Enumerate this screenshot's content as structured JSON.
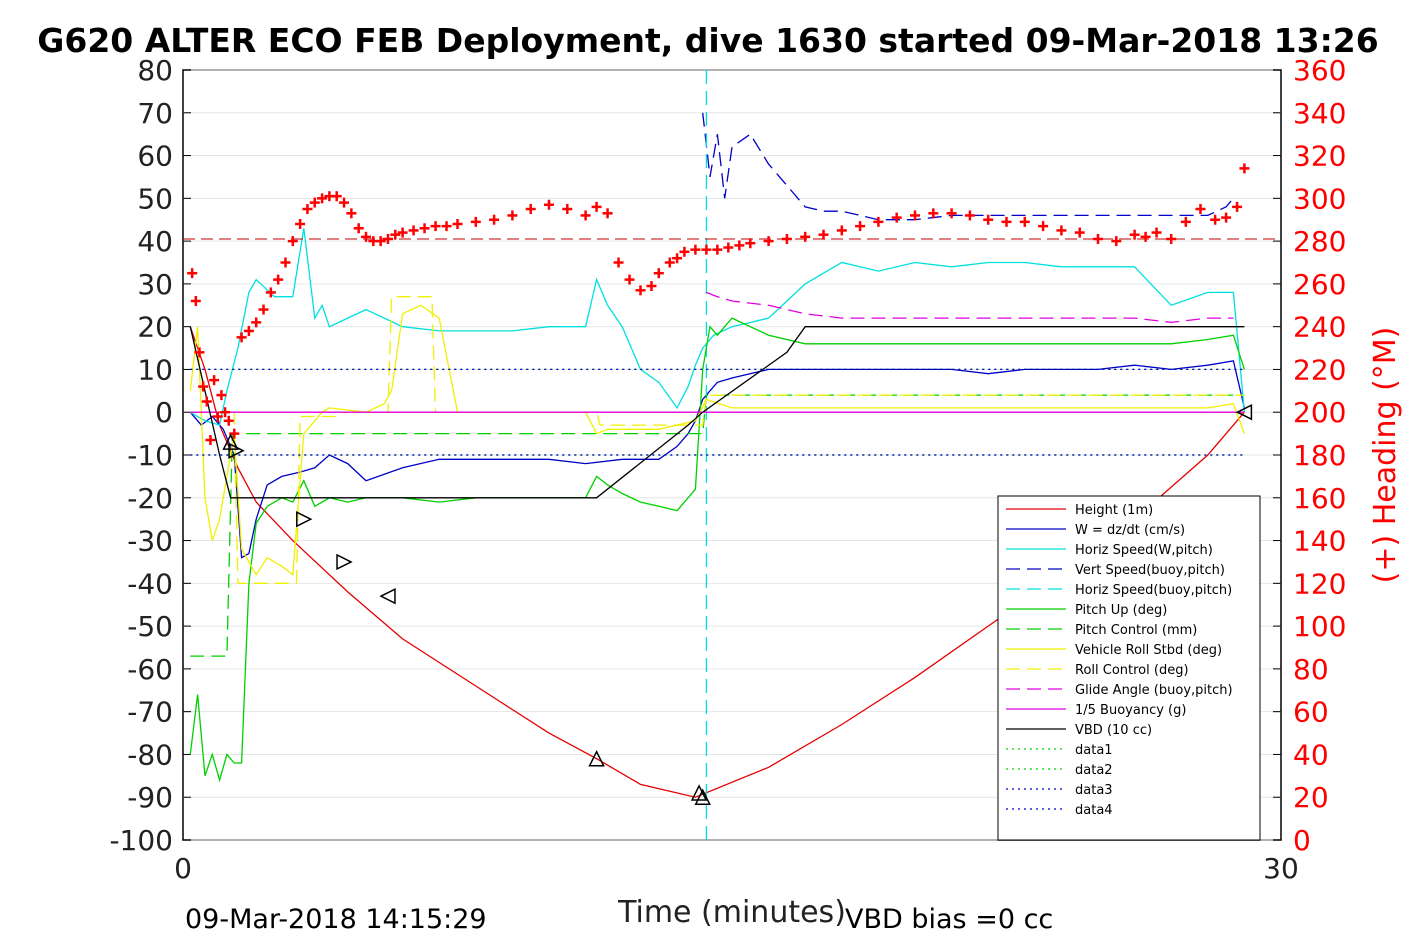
{
  "chart_data": {
    "type": "line",
    "title": "G620 ALTER ECO FEB Deployment, dive 1630 started 09-Mar-2018 13:26",
    "xlabel": "Time (minutes)",
    "ylabel_right": "(+) Heading (°M)",
    "footer_left": "09-Mar-2018 14:15:29",
    "footer_right": "VBD bias =0 cc",
    "xlim": [
      0,
      30
    ],
    "ylim_left": [
      -100,
      80
    ],
    "ylim_right": [
      0,
      360
    ],
    "x_ticks": [
      "0",
      "30"
    ],
    "y_ticks_left": [
      "80",
      "70",
      "60",
      "50",
      "40",
      "30",
      "20",
      "10",
      "0",
      "-10",
      "-20",
      "-30",
      "-40",
      "-50",
      "-60",
      "-70",
      "-80",
      "-90",
      "-100"
    ],
    "y_ticks_right": [
      "360",
      "340",
      "320",
      "300",
      "280",
      "260",
      "240",
      "220",
      "200",
      "180",
      "160",
      "140",
      "120",
      "100",
      "80",
      "60",
      "40",
      "20",
      "0"
    ],
    "grid": true,
    "legend_position": "bottom-right",
    "colors": {
      "red": "#e60000",
      "heading": "#ff0000",
      "blue": "#0000c8",
      "cyan": "#00e0e0",
      "green": "#00d000",
      "yellow": "#f0f000",
      "magenta": "#e000e0",
      "black": "#000000"
    },
    "series": [
      {
        "name": "Height (1m)",
        "color": "#e60000",
        "style": "solid",
        "x": [
          0.2,
          0.6,
          1.0,
          1.5,
          2.0,
          3.0,
          4.5,
          6.0,
          8.0,
          10.0,
          11.3,
          12.5,
          14.0,
          16.0,
          18.0,
          20.0,
          22.0,
          24.0,
          26.0,
          28.0,
          29.0
        ],
        "y": [
          20,
          10,
          -3,
          -13,
          -21,
          -30,
          -42,
          -53,
          -64,
          -75,
          -81,
          -87,
          -90,
          -83,
          -73,
          -62,
          -50,
          -38,
          -25,
          -10,
          0
        ]
      },
      {
        "name": "W = dz/dt (cm/s)",
        "color": "#0000c8",
        "style": "solid",
        "x": [
          0.2,
          0.5,
          0.8,
          1.1,
          1.4,
          1.6,
          1.8,
          2.0,
          2.3,
          2.7,
          3.2,
          3.6,
          4.0,
          4.5,
          5.0,
          6.0,
          7.0,
          8.0,
          9.0,
          10.0,
          11.0,
          12.0,
          13.0,
          13.5,
          13.8,
          14.0,
          14.2,
          14.4,
          14.6,
          15.0,
          16.0,
          17.0,
          18.0,
          19.0,
          20.0,
          21.0,
          22.0,
          23.0,
          24.0,
          25.0,
          26.0,
          27.0,
          28.0,
          28.7,
          29.0
        ],
        "y": [
          0,
          -3,
          -1,
          -4,
          -10,
          -34,
          -33,
          -25,
          -17,
          -15,
          -14,
          -13,
          -10,
          -12,
          -16,
          -13,
          -11,
          -11,
          -11,
          -11,
          -12,
          -11,
          -11,
          -8,
          -5,
          -2,
          3,
          5,
          7,
          8,
          10,
          10,
          10,
          10,
          10,
          10,
          9,
          10,
          10,
          10,
          11,
          10,
          11,
          12,
          1
        ]
      },
      {
        "name": "Horiz Speed(W,pitch)",
        "color": "#00e0e0",
        "style": "solid",
        "x": [
          0.2,
          0.6,
          1.0,
          1.2,
          1.5,
          1.8,
          2.0,
          2.5,
          3.0,
          3.3,
          3.6,
          3.8,
          4.0,
          4.5,
          5.0,
          6.0,
          7.0,
          8.0,
          9.0,
          10.0,
          11.0,
          11.3,
          11.6,
          12.0,
          12.5,
          13.0,
          13.5,
          13.8,
          14.0,
          14.2,
          14.5,
          15.0,
          16.0,
          17.0,
          18.0,
          19.0,
          20.0,
          21.0,
          22.0,
          23.0,
          24.0,
          25.0,
          26.0,
          27.0,
          28.0,
          28.7,
          29.0
        ],
        "y": [
          0,
          -2,
          -3,
          5,
          15,
          28,
          31,
          27,
          27,
          43,
          22,
          25,
          20,
          22,
          24,
          20,
          19,
          19,
          19,
          20,
          20,
          31,
          25,
          20,
          10,
          7,
          1,
          6,
          11,
          15,
          18,
          20,
          22,
          30,
          35,
          33,
          35,
          34,
          35,
          35,
          34,
          34,
          34,
          25,
          28,
          28,
          0
        ]
      },
      {
        "name": "Vert Speed(buoy,pitch)",
        "color": "#0000c8",
        "style": "dash",
        "x": [
          14.2,
          14.4,
          14.6,
          14.8,
          15.0,
          15.5,
          16.0,
          16.5,
          17.0,
          17.5,
          18.0,
          19.0,
          20.0,
          21.0,
          22.0,
          23.0,
          24.0,
          25.0,
          26.0,
          27.0,
          28.0,
          28.5,
          28.7
        ],
        "y": [
          70,
          55,
          65,
          50,
          62,
          65,
          58,
          53,
          48,
          47,
          47,
          45,
          45,
          46,
          46,
          46,
          46,
          46,
          46,
          46,
          46,
          48,
          50
        ]
      },
      {
        "name": "Horiz Speed(buoy,pitch)",
        "color": "#00e0e0",
        "style": "dash",
        "x": [
          14.3,
          14.3
        ],
        "y": [
          -100,
          80
        ]
      },
      {
        "name": "Pitch Up (deg)",
        "color": "#00d000",
        "style": "solid",
        "x": [
          0.2,
          0.4,
          0.6,
          0.8,
          1.0,
          1.2,
          1.4,
          1.6,
          1.8,
          2.0,
          2.3,
          2.7,
          3.0,
          3.3,
          3.6,
          3.8,
          4.0,
          4.5,
          5.0,
          6.0,
          7.0,
          8.0,
          9.0,
          10.0,
          11.0,
          11.3,
          11.6,
          12.0,
          12.5,
          13.0,
          13.5,
          13.8,
          14.0,
          14.2,
          14.4,
          14.6,
          15.0,
          16.0,
          17.0,
          18.0,
          19.0,
          20.0,
          21.0,
          22.0,
          23.0,
          24.0,
          25.0,
          26.0,
          27.0,
          28.0,
          28.7,
          29.0
        ],
        "y": [
          -80,
          -66,
          -85,
          -80,
          -86,
          -80,
          -82,
          -82,
          -40,
          -26,
          -22,
          -20,
          -21,
          -16,
          -22,
          -21,
          -20,
          -21,
          -20,
          -20,
          -21,
          -20,
          -20,
          -20,
          -20,
          -15,
          -17,
          -19,
          -21,
          -22,
          -23,
          -20,
          -18,
          10,
          20,
          18,
          22,
          18,
          16,
          16,
          16,
          16,
          16,
          16,
          16,
          16,
          16,
          16,
          16,
          17,
          18,
          10
        ]
      },
      {
        "name": "Pitch Control (mm)",
        "color": "#00d000",
        "style": "dash",
        "x": [
          0.2,
          1.2,
          1.35,
          1.4,
          14.2,
          14.3,
          29.0
        ],
        "y": [
          -57,
          -57,
          -5,
          -5,
          -5,
          4,
          4
        ]
      },
      {
        "name": "Vehicle Roll Stbd (deg)",
        "color": "#f0f000",
        "style": "solid",
        "x": [
          0.2,
          0.4,
          0.6,
          0.8,
          1.0,
          1.2,
          1.4,
          1.6,
          1.8,
          2.0,
          2.3,
          2.7,
          3.0,
          3.3,
          3.6,
          3.8,
          4.0,
          5.0,
          5.5,
          5.7,
          6.0,
          6.5,
          7.0,
          7.5,
          8.0,
          9.0,
          10.0,
          11.0,
          11.3,
          11.6,
          12.0,
          13.0,
          14.0,
          14.3,
          15.0,
          16.0,
          17.0,
          18.0,
          19.0,
          20.0,
          21.0,
          22.0,
          23.0,
          24.0,
          25.0,
          26.0,
          27.0,
          28.0,
          28.7,
          29.0
        ],
        "y": [
          5,
          20,
          -20,
          -30,
          -25,
          -15,
          -5,
          -32,
          -35,
          -38,
          -34,
          -36,
          -38,
          -5,
          -2,
          0,
          1,
          0,
          2,
          5,
          23,
          25,
          22,
          0,
          0,
          0,
          0,
          0,
          -5,
          -4,
          -4,
          -4,
          -2,
          3,
          1,
          1,
          1,
          1,
          1,
          1,
          1,
          1,
          1,
          1,
          1,
          1,
          1,
          1,
          2,
          -5
        ]
      },
      {
        "name": "Roll Control (deg)",
        "color": "#f0f000",
        "style": "dash",
        "x": [
          0.2,
          1.4,
          1.5,
          3.1,
          3.2,
          4.2,
          4.3,
          5.6,
          5.7,
          6.8,
          6.9,
          11.3,
          11.4,
          14.2,
          14.3,
          29.0
        ],
        "y": [
          0,
          0,
          -40,
          -40,
          -1,
          -1,
          0,
          0,
          27,
          27,
          0,
          0,
          -3,
          -3,
          4,
          4
        ]
      },
      {
        "name": "Glide Angle (buoy,pitch)",
        "color": "#e000e0",
        "style": "dash",
        "x": [
          14.3,
          14.6,
          15.0,
          16.0,
          17.0,
          18.0,
          19.0,
          20.0,
          21.0,
          22.0,
          23.0,
          24.0,
          25.0,
          26.0,
          27.0,
          28.0,
          28.7
        ],
        "y": [
          28,
          27,
          26,
          25,
          23,
          22,
          22,
          22,
          22,
          22,
          22,
          22,
          22,
          22,
          21,
          22,
          22
        ]
      },
      {
        "name": "1/5 Buoyancy (g)",
        "color": "#e000e0",
        "style": "solid",
        "x": [
          0.2,
          14.2,
          14.3,
          29.0
        ],
        "y": [
          0,
          0,
          0,
          0
        ]
      },
      {
        "name": "VBD (10 cc)",
        "color": "#000000",
        "style": "solid",
        "x": [
          0.2,
          1.0,
          1.3,
          11.3,
          13.8,
          14.2,
          16.5,
          17.0,
          29.0
        ],
        "y": [
          20,
          -10,
          -20,
          -20,
          -3,
          0,
          14,
          20,
          20
        ]
      },
      {
        "name": "data1",
        "color": "#00d000",
        "style": "dot",
        "x": [
          0.2,
          29.0
        ],
        "y": [
          10,
          10
        ]
      },
      {
        "name": "data2",
        "color": "#00d000",
        "style": "dot",
        "x": [
          0.2,
          29.0
        ],
        "y": [
          -10,
          -10
        ]
      },
      {
        "name": "data3",
        "color": "#0000c8",
        "style": "dot",
        "x": [
          0.2,
          29.0
        ],
        "y": [
          10,
          10
        ]
      },
      {
        "name": "data4",
        "color": "#0000c8",
        "style": "dot",
        "x": [
          0.2,
          29.0
        ],
        "y": [
          -10,
          -10
        ]
      }
    ],
    "heading_marker": "+",
    "heading": {
      "x": [
        0.25,
        0.35,
        0.45,
        0.55,
        0.65,
        0.75,
        0.85,
        0.95,
        1.05,
        1.15,
        1.25,
        1.4,
        1.6,
        1.8,
        2.0,
        2.2,
        2.4,
        2.6,
        2.8,
        3.0,
        3.2,
        3.4,
        3.6,
        3.8,
        4.0,
        4.2,
        4.4,
        4.6,
        4.8,
        5.0,
        5.2,
        5.4,
        5.6,
        5.8,
        6.0,
        6.3,
        6.6,
        6.9,
        7.2,
        7.5,
        8.0,
        8.5,
        9.0,
        9.5,
        10.0,
        10.5,
        11.0,
        11.3,
        11.6,
        11.9,
        12.2,
        12.5,
        12.8,
        13.0,
        13.3,
        13.5,
        13.7,
        14.0,
        14.3,
        14.6,
        14.9,
        15.2,
        15.5,
        16.0,
        16.5,
        17.0,
        17.5,
        18.0,
        18.5,
        19.0,
        19.5,
        20.0,
        20.5,
        21.0,
        21.5,
        22.0,
        22.5,
        23.0,
        23.5,
        24.0,
        24.5,
        25.0,
        25.5,
        26.0,
        26.3,
        26.6,
        27.0,
        27.4,
        27.8,
        28.2,
        28.5,
        28.8,
        29.0
      ],
      "y": [
        265,
        252,
        228,
        212,
        205,
        187,
        215,
        198,
        208,
        200,
        196,
        190,
        235,
        238,
        242,
        248,
        256,
        262,
        270,
        280,
        288,
        295,
        298,
        300,
        301,
        301,
        298,
        293,
        286,
        282,
        280,
        280,
        281,
        283,
        284,
        285,
        286,
        287,
        287,
        288,
        289,
        290,
        292,
        295,
        297,
        295,
        292,
        296,
        293,
        270,
        262,
        257,
        259,
        265,
        270,
        272,
        275,
        276,
        276,
        276,
        277,
        278,
        279,
        280,
        281,
        282,
        283,
        285,
        287,
        289,
        291,
        292,
        293,
        293,
        292,
        290,
        289,
        289,
        287,
        285,
        284,
        281,
        280,
        283,
        282,
        284,
        281,
        289,
        295,
        290,
        291,
        296,
        314
      ]
    },
    "heading_ref_line": 281,
    "markers": {
      "x": [
        1.3,
        1.45,
        3.3,
        4.4,
        5.6,
        11.3,
        14.1,
        14.2,
        29.0
      ],
      "y": [
        -7,
        -9,
        -25,
        -35,
        -43,
        -81,
        -89,
        -90,
        0
      ],
      "dir": [
        "up",
        "right",
        "right",
        "right",
        "left",
        "up",
        "up",
        "up",
        "left"
      ]
    }
  }
}
